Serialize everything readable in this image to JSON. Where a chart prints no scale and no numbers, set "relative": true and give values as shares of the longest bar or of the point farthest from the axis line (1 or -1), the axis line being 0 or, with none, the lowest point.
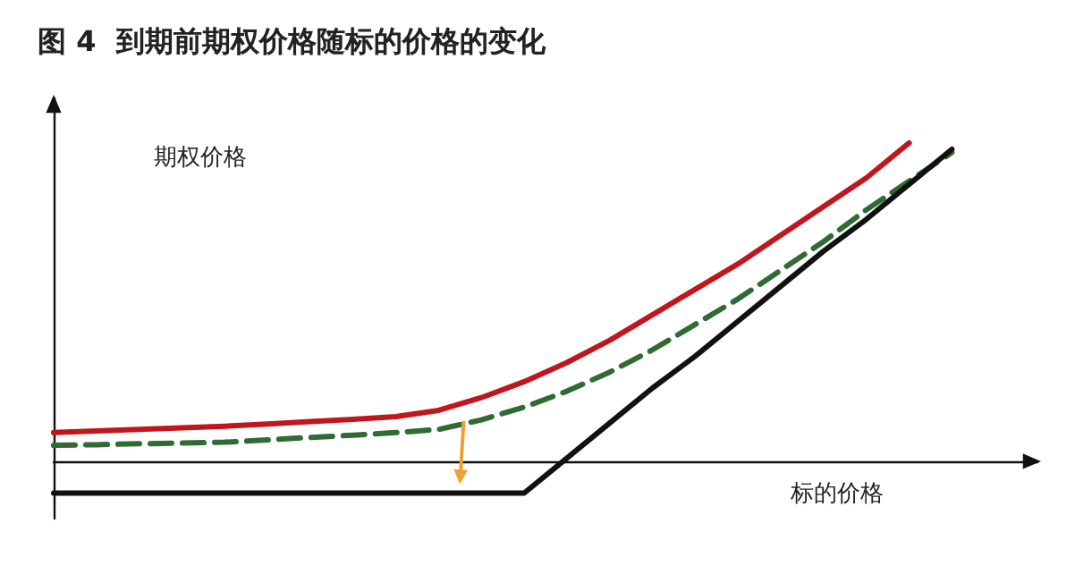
{
  "chart_data": {
    "type": "line",
    "title": "图 4  到期前期权价格随标的价格的变化",
    "xlabel": "标的价格",
    "ylabel": "期权价格",
    "relative": true,
    "categories": [
      null,
      null,
      null,
      null,
      null,
      null,
      null,
      null,
      null,
      null,
      null,
      null,
      null,
      null,
      null,
      null,
      null,
      null,
      null,
      null,
      null,
      null,
      null,
      null
    ],
    "series": [
      {
        "color": "#c0161c",
        "values": [
          0.09,
          0.095,
          0.1,
          0.105,
          0.11,
          0.117,
          0.125,
          0.132,
          0.14,
          0.16,
          0.2,
          0.25,
          0.31,
          0.38,
          0.46,
          0.54,
          0.62,
          0.71,
          0.8,
          0.89,
          1.0,
          null,
          null,
          null
        ]
      },
      {
        "color": "#2f6b32",
        "line_style": "dashed",
        "values": [
          0.05,
          0.052,
          0.055,
          0.057,
          0.06,
          0.067,
          0.075,
          0.082,
          0.09,
          0.1,
          0.13,
          0.17,
          0.22,
          0.28,
          0.35,
          0.43,
          0.51,
          0.6,
          0.69,
          0.79,
          0.88,
          0.97,
          null,
          null
        ]
      },
      {
        "color": "#111111",
        "values": [
          -0.1,
          -0.1,
          -0.1,
          -0.1,
          -0.1,
          -0.1,
          -0.1,
          -0.1,
          -0.1,
          -0.1,
          -0.1,
          -0.1,
          0.01,
          0.12,
          0.23,
          0.33,
          0.44,
          0.55,
          0.66,
          0.76,
          0.87,
          0.98,
          null,
          null
        ]
      }
    ]
  }
}
